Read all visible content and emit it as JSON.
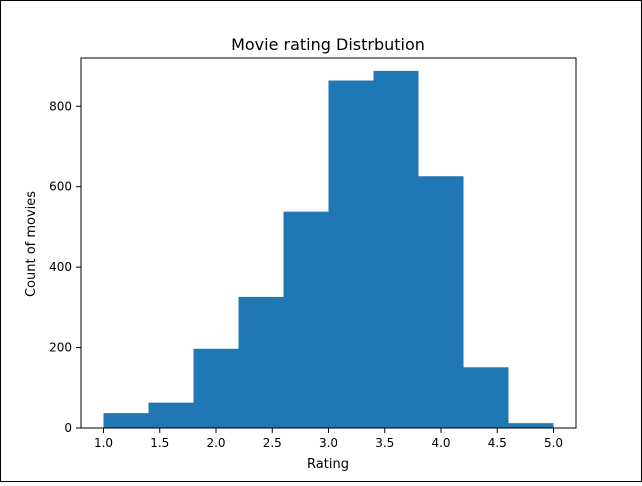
{
  "chart_data": {
    "type": "bar",
    "title": "Movie rating Distrbution",
    "xlabel": "Rating",
    "ylabel": "Count of movies",
    "bar_color": "#1f77b4",
    "xlim": [
      0.8,
      5.2
    ],
    "ylim": [
      0,
      920
    ],
    "bins": [
      {
        "x0": 1.0,
        "x1": 1.4,
        "count": 37
      },
      {
        "x0": 1.4,
        "x1": 1.8,
        "count": 63
      },
      {
        "x0": 1.8,
        "x1": 2.2,
        "count": 197
      },
      {
        "x0": 2.2,
        "x1": 2.6,
        "count": 326
      },
      {
        "x0": 2.6,
        "x1": 3.0,
        "count": 538
      },
      {
        "x0": 3.0,
        "x1": 3.4,
        "count": 864
      },
      {
        "x0": 3.4,
        "x1": 3.8,
        "count": 888
      },
      {
        "x0": 3.8,
        "x1": 4.2,
        "count": 626
      },
      {
        "x0": 4.2,
        "x1": 4.6,
        "count": 151
      },
      {
        "x0": 4.6,
        "x1": 5.0,
        "count": 12
      }
    ],
    "x_ticks": [
      {
        "value": 1.0,
        "label": "1.0"
      },
      {
        "value": 1.5,
        "label": "1.5"
      },
      {
        "value": 2.0,
        "label": "2.0"
      },
      {
        "value": 2.5,
        "label": "2.5"
      },
      {
        "value": 3.0,
        "label": "3.0"
      },
      {
        "value": 3.5,
        "label": "3.5"
      },
      {
        "value": 4.0,
        "label": "4.0"
      },
      {
        "value": 4.5,
        "label": "4.5"
      },
      {
        "value": 5.0,
        "label": "5.0"
      }
    ],
    "y_ticks": [
      {
        "value": 0,
        "label": "0"
      },
      {
        "value": 200,
        "label": "200"
      },
      {
        "value": 400,
        "label": "400"
      },
      {
        "value": 600,
        "label": "600"
      },
      {
        "value": 800,
        "label": "800"
      }
    ],
    "grid": false,
    "legend": "none"
  }
}
